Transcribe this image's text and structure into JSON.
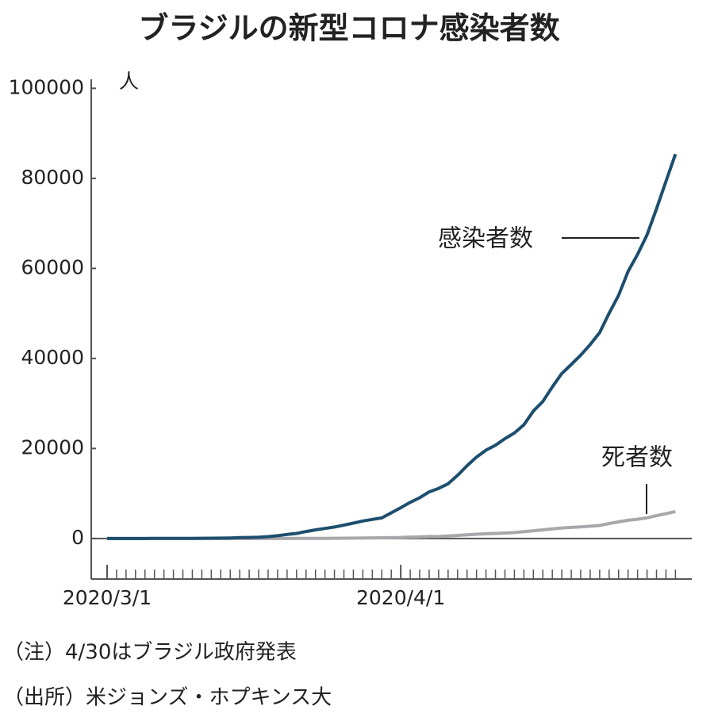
{
  "chart_data": {
    "type": "line",
    "title": "ブラジルの新型コロナ感染者数",
    "y_label": "人",
    "x": [
      "2020/3/1",
      "2020/3/2",
      "2020/3/3",
      "2020/3/4",
      "2020/3/5",
      "2020/3/6",
      "2020/3/7",
      "2020/3/8",
      "2020/3/9",
      "2020/3/10",
      "2020/3/11",
      "2020/3/12",
      "2020/3/13",
      "2020/3/14",
      "2020/3/15",
      "2020/3/16",
      "2020/3/17",
      "2020/3/18",
      "2020/3/19",
      "2020/3/20",
      "2020/3/21",
      "2020/3/22",
      "2020/3/23",
      "2020/3/24",
      "2020/3/25",
      "2020/3/26",
      "2020/3/27",
      "2020/3/28",
      "2020/3/29",
      "2020/3/30",
      "2020/3/31",
      "2020/4/1",
      "2020/4/2",
      "2020/4/3",
      "2020/4/4",
      "2020/4/5",
      "2020/4/6",
      "2020/4/7",
      "2020/4/8",
      "2020/4/9",
      "2020/4/10",
      "2020/4/11",
      "2020/4/12",
      "2020/4/13",
      "2020/4/14",
      "2020/4/15",
      "2020/4/16",
      "2020/4/17",
      "2020/4/18",
      "2020/4/19",
      "2020/4/20",
      "2020/4/21",
      "2020/4/22",
      "2020/4/23",
      "2020/4/24",
      "2020/4/25",
      "2020/4/26",
      "2020/4/27",
      "2020/4/28",
      "2020/4/29",
      "2020/4/30"
    ],
    "xticks": [
      "2020/3/1",
      "2020/4/1"
    ],
    "series": [
      {
        "name": "感染者数",
        "color": "#1d4e6e",
        "values": [
          2,
          2,
          2,
          3,
          8,
          13,
          19,
          25,
          25,
          34,
          52,
          77,
          98,
          121,
          200,
          234,
          291,
          428,
          621,
          904,
          1128,
          1546,
          1924,
          2247,
          2554,
          2985,
          3417,
          3904,
          4256,
          4579,
          5717,
          6836,
          8044,
          9056,
          10360,
          11130,
          12161,
          14034,
          16170,
          18092,
          19638,
          20727,
          22192,
          23430,
          25262,
          28320,
          30425,
          33682,
          36658,
          38654,
          40743,
          43079,
          45757,
          50036,
          54043,
          59324,
          63100,
          67446,
          73235,
          79361,
          85380
        ]
      },
      {
        "name": "死者数",
        "color": "#aaa6ab",
        "values": [
          0,
          0,
          0,
          0,
          0,
          0,
          0,
          0,
          0,
          0,
          0,
          0,
          0,
          0,
          0,
          0,
          1,
          4,
          6,
          11,
          18,
          25,
          34,
          46,
          59,
          77,
          92,
          111,
          136,
          159,
          201,
          240,
          324,
          359,
          445,
          486,
          564,
          686,
          819,
          950,
          1057,
          1124,
          1223,
          1328,
          1532,
          1736,
          1924,
          2141,
          2354,
          2462,
          2587,
          2741,
          2906,
          3331,
          3704,
          4057,
          4286,
          4603,
          5083,
          5513,
          6000
        ]
      }
    ],
    "ylim": [
      -9000,
      102000
    ],
    "yticks": [
      0,
      20000,
      40000,
      60000,
      80000,
      100000
    ],
    "notes": [
      "（注）4/30はブラジル政府発表",
      "（出所）米ジョンズ・ホプキンス大"
    ]
  }
}
